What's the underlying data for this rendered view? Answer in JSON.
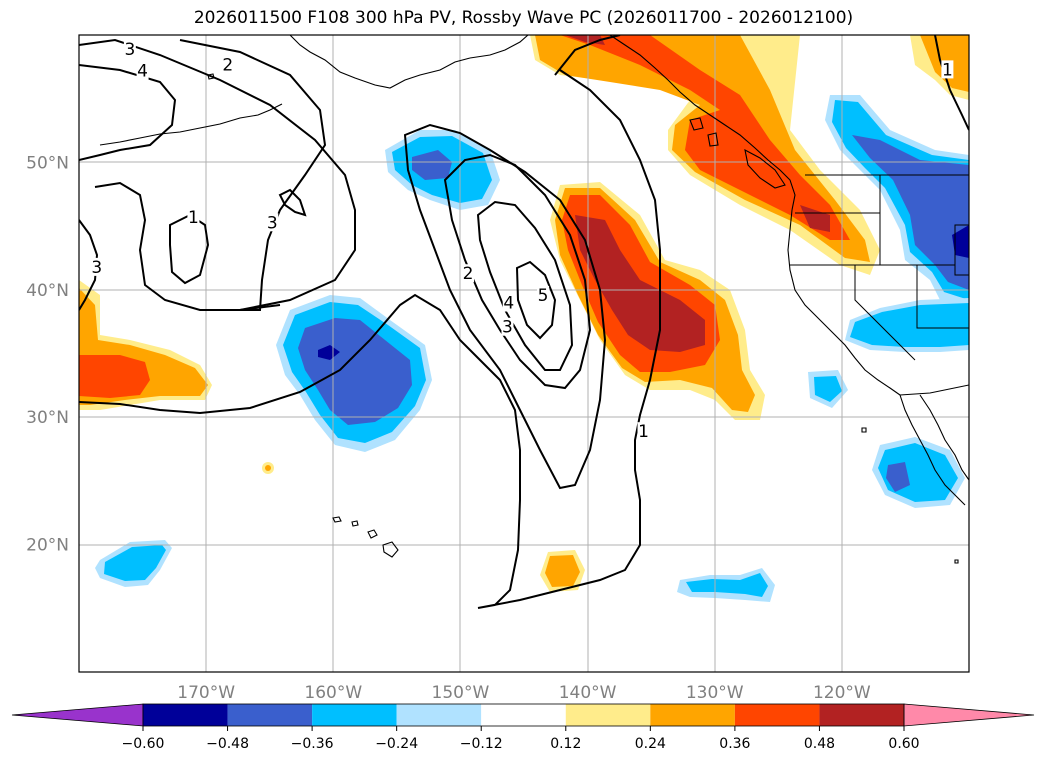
{
  "title": "2026011500 F108 300 hPa PV, Rossby Wave PC (2026011700 - 2026012100)",
  "map": {
    "lon_range": [
      -180,
      -110
    ],
    "lat_range": [
      10,
      60
    ],
    "lat_ticks": [
      {
        "v": 50,
        "label": "50°N"
      },
      {
        "v": 40,
        "label": "40°N"
      },
      {
        "v": 30,
        "label": "30°N"
      },
      {
        "v": 20,
        "label": "20°N"
      }
    ],
    "lon_ticks": [
      {
        "v": -170,
        "label": "170°W"
      },
      {
        "v": -160,
        "label": "160°W"
      },
      {
        "v": -150,
        "label": "150°W"
      },
      {
        "v": -140,
        "label": "140°W"
      },
      {
        "v": -130,
        "label": "130°W"
      },
      {
        "v": -120,
        "label": "120°W"
      }
    ],
    "grid": true,
    "contour_labels": [
      {
        "text": "3",
        "lon": -176.0,
        "lat": 58.9
      },
      {
        "text": "4",
        "lon": -175.0,
        "lat": 57.2
      },
      {
        "text": "2",
        "lon": -168.3,
        "lat": 57.7
      },
      {
        "text": "1",
        "lon": -171.0,
        "lat": 45.7
      },
      {
        "text": "3",
        "lon": -164.8,
        "lat": 45.3
      },
      {
        "text": "3",
        "lon": -178.6,
        "lat": 41.8
      },
      {
        "text": "2",
        "lon": -149.4,
        "lat": 41.3
      },
      {
        "text": "4",
        "lon": -146.2,
        "lat": 39.0
      },
      {
        "text": "5",
        "lon": -143.5,
        "lat": 39.6
      },
      {
        "text": "3",
        "lon": -146.3,
        "lat": 37.1
      },
      {
        "text": "1",
        "lon": -135.6,
        "lat": 28.9
      },
      {
        "text": "1",
        "lon": -111.7,
        "lat": 57.3
      }
    ]
  },
  "colorbar": {
    "ticks": [
      "−0.60",
      "−0.48",
      "−0.36",
      "−0.24",
      "−0.12",
      "0.12",
      "0.24",
      "0.36",
      "0.48",
      "0.60"
    ],
    "colors": [
      "#9933cc",
      "#000099",
      "#3a5fcd",
      "#00bfff",
      "#b0e2ff",
      "#ffffff",
      "#ffec8b",
      "#ffa500",
      "#ff4500",
      "#b22222",
      "#ff89a9"
    ]
  }
}
